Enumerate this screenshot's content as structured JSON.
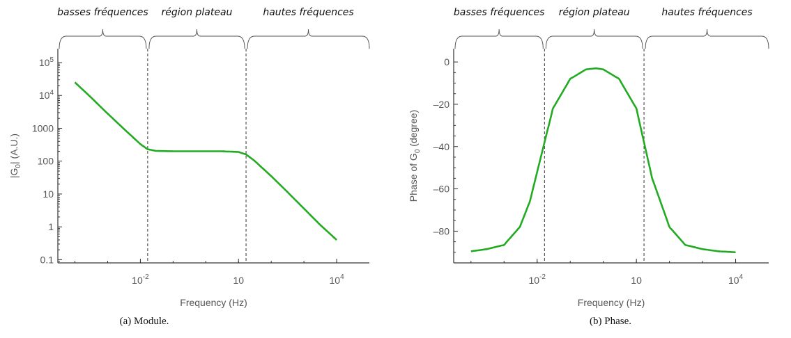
{
  "chart_data": [
    {
      "type": "line",
      "title": "",
      "xlabel": "Frequency (Hz)",
      "ylabel": "|G0| (A.U.)",
      "ylabel_main": "|G",
      "ylabel_sub": "0",
      "ylabel_tail": "| (A.U.)",
      "caption": "(a)  Module.",
      "x_scale": "log",
      "y_scale": "log",
      "xlim": [
        3e-05,
        100000
      ],
      "ylim": [
        0.08,
        100000
      ],
      "x_ticks": [
        {
          "value": 0.01,
          "base": "10",
          "exp": "-2"
        },
        {
          "value": 10,
          "base": "10",
          "exp": ""
        },
        {
          "value": 10000,
          "base": "10",
          "exp": "4"
        }
      ],
      "y_ticks": [
        {
          "value": 0.1,
          "base": "0.1",
          "exp": ""
        },
        {
          "value": 1,
          "base": "1",
          "exp": ""
        },
        {
          "value": 10,
          "base": "10",
          "exp": ""
        },
        {
          "value": 100,
          "base": "100",
          "exp": ""
        },
        {
          "value": 1000,
          "base": "1000",
          "exp": ""
        },
        {
          "value": 10000,
          "base": "10",
          "exp": "4"
        },
        {
          "value": 100000,
          "base": "10",
          "exp": "5"
        }
      ],
      "regions": [
        "basses fréquences",
        "région plateau",
        "hautes fréquences"
      ],
      "region_boundaries_x": [
        0.0167,
        17
      ],
      "series": [
        {
          "color": "#22aa22",
          "x": [
            0.0001,
            0.0003,
            0.001,
            0.003,
            0.01,
            0.0167,
            0.03,
            0.1,
            0.3,
            1,
            3,
            10,
            17,
            30,
            100,
            300,
            1000,
            3000,
            10000
          ],
          "y": [
            25000,
            9000,
            2800,
            1000,
            330,
            230,
            205,
            200,
            200,
            200,
            200,
            190,
            160,
            105,
            35,
            12,
            3.6,
            1.2,
            0.4
          ]
        }
      ],
      "grid": false,
      "legend": "none"
    },
    {
      "type": "line",
      "title": "",
      "xlabel": "Frequency (Hz)",
      "ylabel": "Phase of G0 (degree)",
      "ylabel_main": "Phase of G",
      "ylabel_sub": "0",
      "ylabel_tail": " (degree)",
      "caption": "(b)  Phase.",
      "x_scale": "log",
      "y_scale": "linear",
      "xlim": [
        3e-05,
        100000
      ],
      "ylim": [
        -95,
        3
      ],
      "x_ticks": [
        {
          "value": 0.01,
          "base": "10",
          "exp": "-2"
        },
        {
          "value": 10,
          "base": "10",
          "exp": ""
        },
        {
          "value": 10000,
          "base": "10",
          "exp": "4"
        }
      ],
      "y_ticks": [
        {
          "value": 0,
          "base": "0",
          "exp": ""
        },
        {
          "value": -20,
          "base": "–20",
          "exp": ""
        },
        {
          "value": -40,
          "base": "–40",
          "exp": ""
        },
        {
          "value": -60,
          "base": "–60",
          "exp": ""
        },
        {
          "value": -80,
          "base": "–80",
          "exp": ""
        }
      ],
      "regions": [
        "basses fréquences",
        "région plateau",
        "hautes fréquences"
      ],
      "region_boundaries_x": [
        0.0167,
        17
      ],
      "series": [
        {
          "color": "#22aa22",
          "x": [
            0.0001,
            0.0003,
            0.001,
            0.003,
            0.006,
            0.0167,
            0.03,
            0.1,
            0.3,
            0.6,
            1,
            3,
            10,
            17,
            30,
            100,
            300,
            1000,
            3000,
            10000
          ],
          "y": [
            -89.5,
            -88.5,
            -86.5,
            -78,
            -66,
            -38,
            -22,
            -8,
            -3.5,
            -3,
            -3.5,
            -8,
            -22,
            -38,
            -55,
            -78,
            -86.5,
            -88.5,
            -89.5,
            -90
          ]
        }
      ],
      "grid": false,
      "legend": "none"
    }
  ]
}
